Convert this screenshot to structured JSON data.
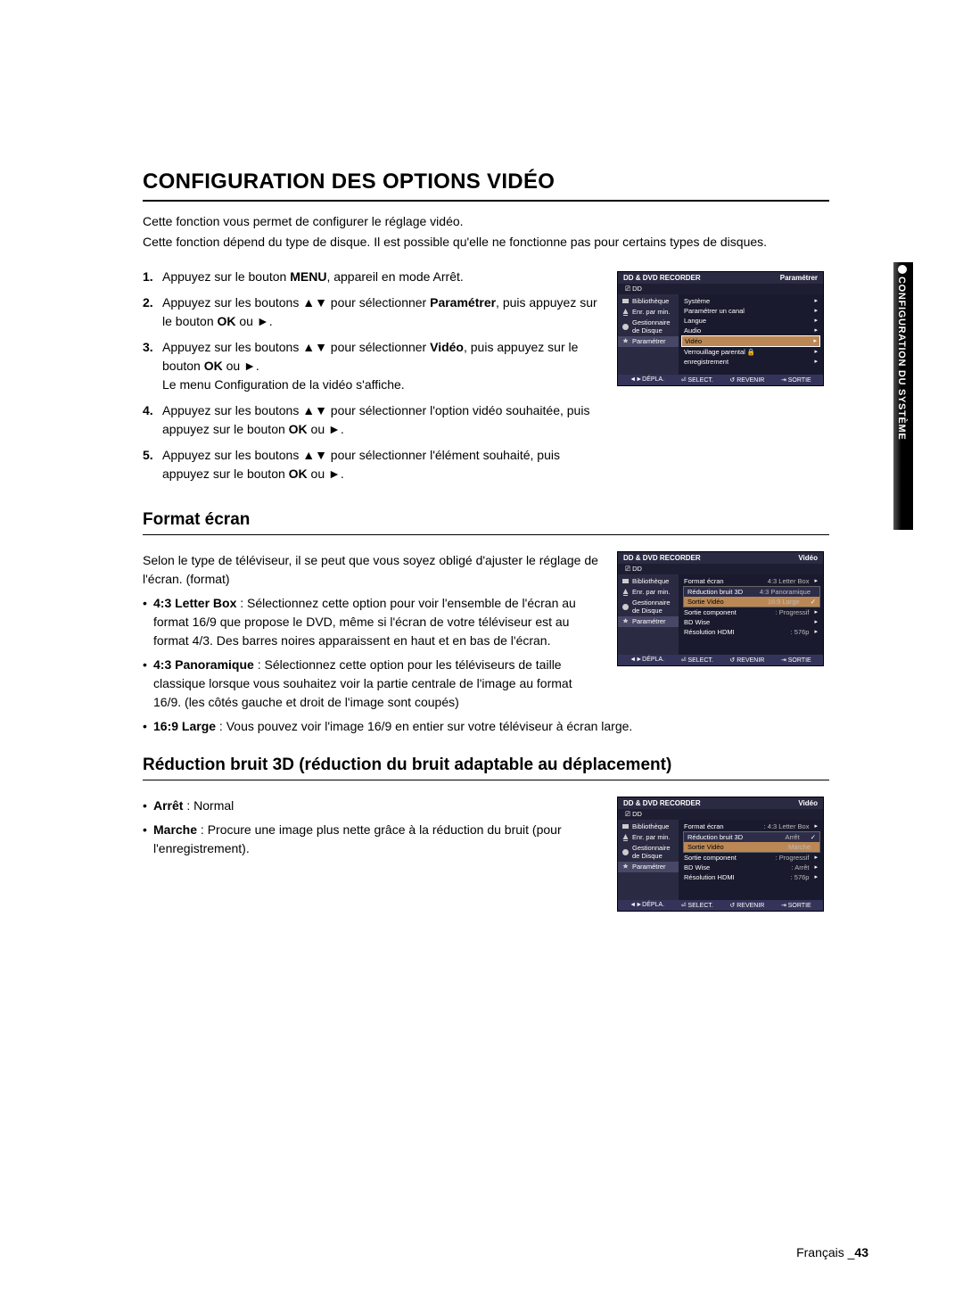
{
  "sidetab": {
    "label": "CONFIGURATION DU SYSTÈME"
  },
  "title": "CONFIGURATION DES OPTIONS VIDÉO",
  "intro": {
    "l1": "Cette fonction vous permet de configurer le réglage vidéo.",
    "l2": "Cette fonction dépend du type de disque. Il est possible qu'elle ne fonctionne pas pour certains types de disques."
  },
  "steps": [
    {
      "n": "1.",
      "pre": "Appuyez sur le bouton ",
      "b1": "MENU",
      "post": ", appareil en mode Arrêt."
    },
    {
      "n": "2.",
      "pre": "Appuyez sur les boutons ▲▼ pour sélectionner ",
      "b1": "Paramétrer",
      "mid": ", puis appuyez sur le bouton ",
      "b2": "OK",
      "post": " ou ►."
    },
    {
      "n": "3.",
      "pre": "Appuyez sur les boutons ▲▼ pour sélectionner ",
      "b1": "Vidéo",
      "mid": ", puis appuyez sur le bouton ",
      "b2": "OK",
      "post": " ou ►.",
      "extra": "Le menu Configuration de la vidéo s'affiche."
    },
    {
      "n": "4.",
      "pre": "Appuyez sur les boutons ▲▼ pour sélectionner l'option vidéo souhaitée, puis appuyez sur le bouton ",
      "b1": "OK",
      "post": " ou ►."
    },
    {
      "n": "5.",
      "pre": "Appuyez sur les boutons ▲▼ pour sélectionner l'élément souhaité, puis appuyez sur le bouton ",
      "b1": "OK",
      "post": " ou ►."
    }
  ],
  "h2a": "Format écran",
  "formatIntro": "Selon le type de téléviseur, il se peut que vous soyez obligé d'ajuster le réglage de l'écran. (format)",
  "formatBullets": [
    {
      "b": "4:3 Letter Box",
      "t": " : Sélectionnez cette option pour voir l'ensemble de l'écran au format 16/9 que propose le DVD, même si l'écran de votre téléviseur est au format 4/3. Des barres noires apparaissent en haut et en bas de l'écran."
    },
    {
      "b": "4:3 Panoramique",
      "t": " : Sélectionnez cette option pour les téléviseurs de taille classique lorsque vous souhaitez voir la partie centrale de l'image au format 16/9. (les côtés gauche et droit de l'image sont coupés)"
    },
    {
      "b": "16:9 Large",
      "t": " : Vous pouvez voir l'image 16/9 en entier sur votre téléviseur à écran large."
    }
  ],
  "h2b": "Réduction bruit 3D (réduction du bruit adaptable au déplacement)",
  "noiseBullets": [
    {
      "b": "Arrêt",
      "t": " : Normal"
    },
    {
      "b": "Marche",
      "t": " : Procure une image plus nette grâce à la réduction du bruit (pour l'enregistrement)."
    }
  ],
  "osd": {
    "headL": "DD & DVD RECORDER",
    "dd": "DD",
    "left": [
      {
        "label": "Bibliothèque"
      },
      {
        "label": "Enr. par min."
      },
      {
        "label": "Gestionnaire de Disque"
      },
      {
        "label": "Paramétrer"
      }
    ],
    "foot": {
      "a": "◄►DÉPLA.",
      "b": "⏎ SELECT.",
      "c": "↺ REVENIR",
      "d": "⇥ SORTIE"
    }
  },
  "osd1": {
    "headR": "Paramétrer",
    "items": [
      {
        "l": "Système"
      },
      {
        "l": "Paramétrer un canal"
      },
      {
        "l": "Langue"
      },
      {
        "l": "Audio"
      },
      {
        "l": "Vidéo",
        "hl": true
      },
      {
        "l": "Verrouillage parental",
        "lock": true
      },
      {
        "l": "enregistrement"
      }
    ]
  },
  "osd2": {
    "headR": "Vidéo",
    "items": [
      {
        "l": "Format écran",
        "v": "4:3 Letter Box",
        "subopen": true
      },
      {
        "l": "Réduction bruit 3D",
        "v": "4:3 Panoramique"
      },
      {
        "l": "Sortie Vidéo",
        "v": "16:9 Large",
        "ck": true
      },
      {
        "l": "Sortie component",
        "v": ": Progressif"
      },
      {
        "l": "BD Wise",
        "v": ""
      },
      {
        "l": "Résolution HDMI",
        "v": ": 576p"
      }
    ]
  },
  "osd3": {
    "headR": "Vidéo",
    "items": [
      {
        "l": "Format écran",
        "v": ": 4:3 Letter Box"
      },
      {
        "l": "Réduction bruit 3D",
        "v": "Arrêt",
        "subopen": true,
        "ck": true
      },
      {
        "l": "Sortie Vidéo",
        "v": "Marche",
        "hl2": true
      },
      {
        "l": "Sortie component",
        "v": ": Progressif"
      },
      {
        "l": "BD Wise",
        "v": ": Arrêt"
      },
      {
        "l": "Résolution HDMI",
        "v": ": 576p"
      }
    ]
  },
  "footer": {
    "lang": "Français _",
    "pg": "43"
  }
}
